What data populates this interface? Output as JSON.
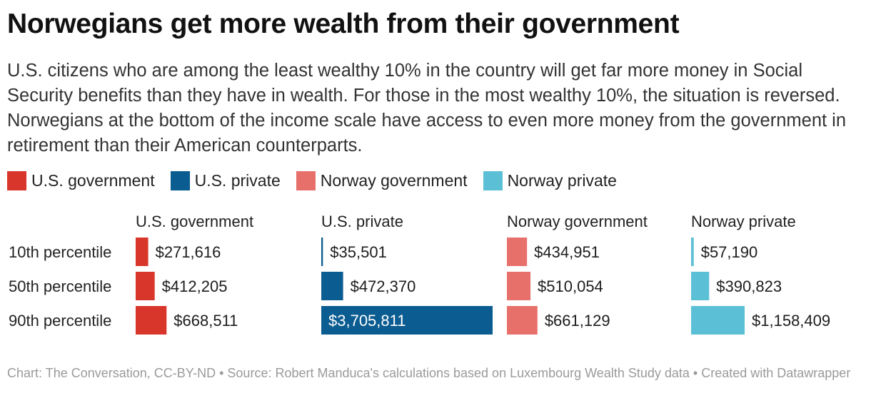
{
  "title": "Norwegians get more wealth from their government",
  "subtitle": "U.S. citizens who are among the least wealthy 10% in the country will get far more money in Social Security benefits than they have in wealth. For those in the most wealthy 10%, the situation is reversed. Norwegians at the bottom of the income scale have access to even more money from the government in retirement than their American counterparts.",
  "legend": [
    {
      "label": "U.S. government",
      "color": "#d9362b"
    },
    {
      "label": "U.S. private",
      "color": "#0a5c91"
    },
    {
      "label": "Norway government",
      "color": "#e8706b"
    },
    {
      "label": "Norway private",
      "color": "#5bc0d6"
    }
  ],
  "chart_data": {
    "type": "bar",
    "categories": [
      "10th percentile",
      "50th percentile",
      "90th percentile"
    ],
    "series": [
      {
        "name": "U.S. government",
        "color": "#d9362b",
        "values": [
          271616,
          412205,
          668511
        ],
        "labels": [
          "$271,616",
          "$412,205",
          "$668,511"
        ]
      },
      {
        "name": "U.S. private",
        "color": "#0a5c91",
        "values": [
          35501,
          472370,
          3705811
        ],
        "labels": [
          "$35,501",
          "$472,370",
          "$3,705,811"
        ]
      },
      {
        "name": "Norway government",
        "color": "#e8706b",
        "values": [
          434951,
          510054,
          661129
        ],
        "labels": [
          "$434,951",
          "$510,054",
          "$661,129"
        ]
      },
      {
        "name": "Norway private",
        "color": "#5bc0d6",
        "values": [
          57190,
          390823,
          1158409
        ],
        "labels": [
          "$57,190",
          "$390,823",
          "$1,158,409"
        ]
      }
    ],
    "xlim": [
      0,
      3705811
    ],
    "grid": false,
    "legend_position": "top-left"
  },
  "footer": {
    "text": "Chart: The Conversation, CC-BY-ND • Source: Robert Manduca's calculations based on Luxembourg Wealth Study data • Created with Datawrapper"
  }
}
